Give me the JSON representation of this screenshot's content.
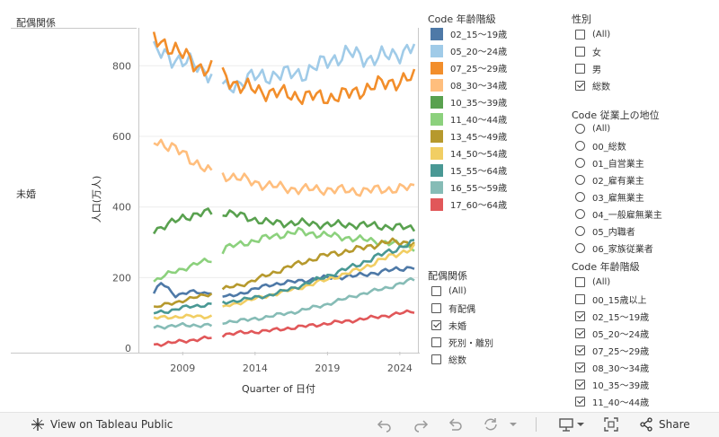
{
  "panel": {
    "row_header": "配偶関係",
    "row_label": "未婚"
  },
  "chart_data": {
    "type": "line",
    "xlabel": "Quarter of 日付",
    "ylabel": "人口(万人)",
    "x_ticks": [
      "2009",
      "2014",
      "2019",
      "2024"
    ],
    "y_ticks": [
      0,
      200,
      400,
      600,
      800
    ],
    "xlim": [
      "2006-Q1",
      "2025-Q2"
    ],
    "ylim": [
      -10,
      905
    ],
    "grid": true,
    "gap": [
      "2011-Q2",
      "2011-Q4"
    ],
    "series": [
      {
        "name": "02_15～19歳",
        "color": "#4e79a7",
        "anchors": [
          [
            2007.0,
            155
          ],
          [
            2007.5,
            185
          ],
          [
            2008.5,
            150
          ],
          [
            2009.5,
            160
          ],
          [
            2010.5,
            155
          ],
          [
            2011.0,
            160
          ],
          [
            2012.0,
            145
          ],
          [
            2013.0,
            155
          ],
          [
            2015.0,
            180
          ],
          [
            2017.0,
            190
          ],
          [
            2019.0,
            200
          ],
          [
            2021.0,
            205
          ],
          [
            2022.5,
            215
          ],
          [
            2024.0,
            225
          ],
          [
            2025.0,
            230
          ]
        ]
      },
      {
        "name": "05_20～24歳",
        "color": "#a0cbe8",
        "anchors": [
          [
            2007.0,
            840
          ],
          [
            2008.0,
            830
          ],
          [
            2009.0,
            810
          ],
          [
            2010.0,
            800
          ],
          [
            2011.0,
            775
          ],
          [
            2012.0,
            735
          ],
          [
            2013.5,
            765
          ],
          [
            2015.5,
            775
          ],
          [
            2017.5,
            780
          ],
          [
            2019.0,
            815
          ],
          [
            2020.5,
            835
          ],
          [
            2022.0,
            820
          ],
          [
            2023.5,
            830
          ],
          [
            2025.0,
            855
          ]
        ]
      },
      {
        "name": "07_25～29歳",
        "color": "#f28e2b",
        "anchors": [
          [
            2007.0,
            875
          ],
          [
            2008.0,
            860
          ],
          [
            2009.0,
            830
          ],
          [
            2010.0,
            800
          ],
          [
            2011.0,
            790
          ],
          [
            2012.0,
            770
          ],
          [
            2013.0,
            740
          ],
          [
            2015.0,
            725
          ],
          [
            2017.0,
            715
          ],
          [
            2019.0,
            710
          ],
          [
            2020.5,
            720
          ],
          [
            2022.0,
            740
          ],
          [
            2023.5,
            755
          ],
          [
            2025.0,
            765
          ]
        ]
      },
      {
        "name": "08_30～34歳",
        "color": "#ffbe7d",
        "anchors": [
          [
            2007.0,
            590
          ],
          [
            2008.0,
            575
          ],
          [
            2009.0,
            550
          ],
          [
            2010.0,
            525
          ],
          [
            2011.0,
            495
          ],
          [
            2012.0,
            490
          ],
          [
            2013.5,
            475
          ],
          [
            2015.0,
            460
          ],
          [
            2017.0,
            450
          ],
          [
            2019.0,
            450
          ],
          [
            2021.0,
            445
          ],
          [
            2023.0,
            450
          ],
          [
            2025.0,
            455
          ]
        ]
      },
      {
        "name": "10_35～39歳",
        "color": "#59a14f",
        "anchors": [
          [
            2007.0,
            335
          ],
          [
            2008.0,
            350
          ],
          [
            2009.0,
            370
          ],
          [
            2010.0,
            380
          ],
          [
            2011.0,
            385
          ],
          [
            2012.0,
            385
          ],
          [
            2013.5,
            370
          ],
          [
            2015.0,
            355
          ],
          [
            2017.0,
            355
          ],
          [
            2019.0,
            350
          ],
          [
            2021.0,
            350
          ],
          [
            2023.0,
            345
          ],
          [
            2025.0,
            340
          ]
        ]
      },
      {
        "name": "11_40～44歳",
        "color": "#8cd17d",
        "anchors": [
          [
            2007.0,
            190
          ],
          [
            2008.0,
            210
          ],
          [
            2009.0,
            225
          ],
          [
            2010.0,
            240
          ],
          [
            2011.0,
            250
          ],
          [
            2012.0,
            285
          ],
          [
            2013.5,
            300
          ],
          [
            2015.0,
            315
          ],
          [
            2017.0,
            330
          ],
          [
            2019.0,
            320
          ],
          [
            2021.0,
            310
          ],
          [
            2023.0,
            300
          ],
          [
            2025.0,
            285
          ]
        ]
      },
      {
        "name": "13_45～49歳",
        "color": "#b6992d",
        "anchors": [
          [
            2007.0,
            115
          ],
          [
            2008.0,
            125
          ],
          [
            2009.0,
            135
          ],
          [
            2010.0,
            145
          ],
          [
            2011.0,
            155
          ],
          [
            2012.0,
            170
          ],
          [
            2013.5,
            185
          ],
          [
            2015.0,
            210
          ],
          [
            2017.0,
            240
          ],
          [
            2019.0,
            265
          ],
          [
            2021.0,
            280
          ],
          [
            2023.0,
            300
          ],
          [
            2025.0,
            300
          ]
        ]
      },
      {
        "name": "14_50～54歳",
        "color": "#f1ce63",
        "anchors": [
          [
            2007.0,
            85
          ],
          [
            2008.0,
            88
          ],
          [
            2009.0,
            90
          ],
          [
            2010.0,
            90
          ],
          [
            2011.0,
            90
          ],
          [
            2012.0,
            120
          ],
          [
            2013.5,
            135
          ],
          [
            2015.0,
            150
          ],
          [
            2017.0,
            170
          ],
          [
            2019.0,
            195
          ],
          [
            2021.0,
            220
          ],
          [
            2023.0,
            255
          ],
          [
            2025.0,
            285
          ]
        ]
      },
      {
        "name": "15_55～64歳",
        "color": "#499894",
        "anchors": [
          [
            2007.0,
            100
          ],
          [
            2008.0,
            105
          ],
          [
            2009.0,
            115
          ],
          [
            2010.0,
            120
          ],
          [
            2011.0,
            125
          ],
          [
            2012.0,
            130
          ],
          [
            2013.5,
            140
          ],
          [
            2015.0,
            150
          ],
          [
            2017.0,
            175
          ],
          [
            2019.0,
            205
          ],
          [
            2021.0,
            235
          ],
          [
            2023.0,
            270
          ],
          [
            2025.0,
            300
          ]
        ]
      },
      {
        "name": "16_55～59歳",
        "color": "#86bcb6",
        "anchors": [
          [
            2007.0,
            60
          ],
          [
            2008.0,
            62
          ],
          [
            2009.0,
            65
          ],
          [
            2010.0,
            65
          ],
          [
            2011.0,
            65
          ],
          [
            2012.0,
            75
          ],
          [
            2013.5,
            80
          ],
          [
            2015.0,
            90
          ],
          [
            2017.0,
            105
          ],
          [
            2019.0,
            125
          ],
          [
            2021.0,
            150
          ],
          [
            2023.0,
            170
          ],
          [
            2025.0,
            195
          ]
        ]
      },
      {
        "name": "17_60～64歳",
        "color": "#e15759",
        "anchors": [
          [
            2007.0,
            10
          ],
          [
            2008.0,
            14
          ],
          [
            2009.0,
            20
          ],
          [
            2010.0,
            25
          ],
          [
            2011.0,
            30
          ],
          [
            2012.0,
            40
          ],
          [
            2013.5,
            45
          ],
          [
            2015.0,
            50
          ],
          [
            2017.0,
            60
          ],
          [
            2019.0,
            70
          ],
          [
            2021.0,
            80
          ],
          [
            2023.0,
            92
          ],
          [
            2025.0,
            105
          ]
        ]
      }
    ]
  },
  "legend": {
    "title": "Code 年齢階級",
    "items": [
      {
        "label": "02_15～19歳",
        "color": "#4e79a7"
      },
      {
        "label": "05_20～24歳",
        "color": "#a0cbe8"
      },
      {
        "label": "07_25～29歳",
        "color": "#f28e2b"
      },
      {
        "label": "08_30～34歳",
        "color": "#ffbe7d"
      },
      {
        "label": "10_35～39歳",
        "color": "#59a14f"
      },
      {
        "label": "11_40～44歳",
        "color": "#8cd17d"
      },
      {
        "label": "13_45～49歳",
        "color": "#b6992d"
      },
      {
        "label": "14_50～54歳",
        "color": "#f1ce63"
      },
      {
        "label": "15_55～64歳",
        "color": "#499894"
      },
      {
        "label": "16_55～59歳",
        "color": "#86bcb6"
      },
      {
        "label": "17_60～64歳",
        "color": "#e15759"
      }
    ]
  },
  "filter_marital": {
    "title": "配偶関係",
    "items": [
      {
        "label": "(All)",
        "checked": false
      },
      {
        "label": "有配偶",
        "checked": false
      },
      {
        "label": "未婚",
        "checked": true
      },
      {
        "label": "死別・離別",
        "checked": false
      },
      {
        "label": "総数",
        "checked": false
      }
    ]
  },
  "filter_sex": {
    "title": "性別",
    "items": [
      {
        "label": "(All)",
        "checked": false
      },
      {
        "label": "女",
        "checked": false
      },
      {
        "label": "男",
        "checked": false
      },
      {
        "label": "総数",
        "checked": true
      }
    ]
  },
  "filter_status": {
    "title": "Code 従業上の地位",
    "items": [
      {
        "label": "(All)"
      },
      {
        "label": "00_総数"
      },
      {
        "label": "01_自営業主"
      },
      {
        "label": "02_雇有業主"
      },
      {
        "label": "03_雇無業主"
      },
      {
        "label": "04_一般雇無業主"
      },
      {
        "label": "05_内職者"
      },
      {
        "label": "06_家族従業者"
      }
    ]
  },
  "filter_age": {
    "title": "Code 年齢階級",
    "items": [
      {
        "label": "(All)",
        "checked": false
      },
      {
        "label": "00_15歳以上",
        "checked": false
      },
      {
        "label": "02_15～19歳",
        "checked": true
      },
      {
        "label": "05_20～24歳",
        "checked": true
      },
      {
        "label": "07_25～29歳",
        "checked": true
      },
      {
        "label": "08_30～34歳",
        "checked": true
      },
      {
        "label": "10_35～39歳",
        "checked": true
      },
      {
        "label": "11_40～44歳",
        "checked": true
      }
    ]
  },
  "toolbar": {
    "view_label": "View on Tableau Public",
    "share_label": "Share",
    "icons": [
      "tableau-logo-icon",
      "undo-icon",
      "redo-icon",
      "revert-icon",
      "refresh-icon",
      "pause-icon",
      "download-icon",
      "fullscreen-icon",
      "share-icon"
    ]
  }
}
